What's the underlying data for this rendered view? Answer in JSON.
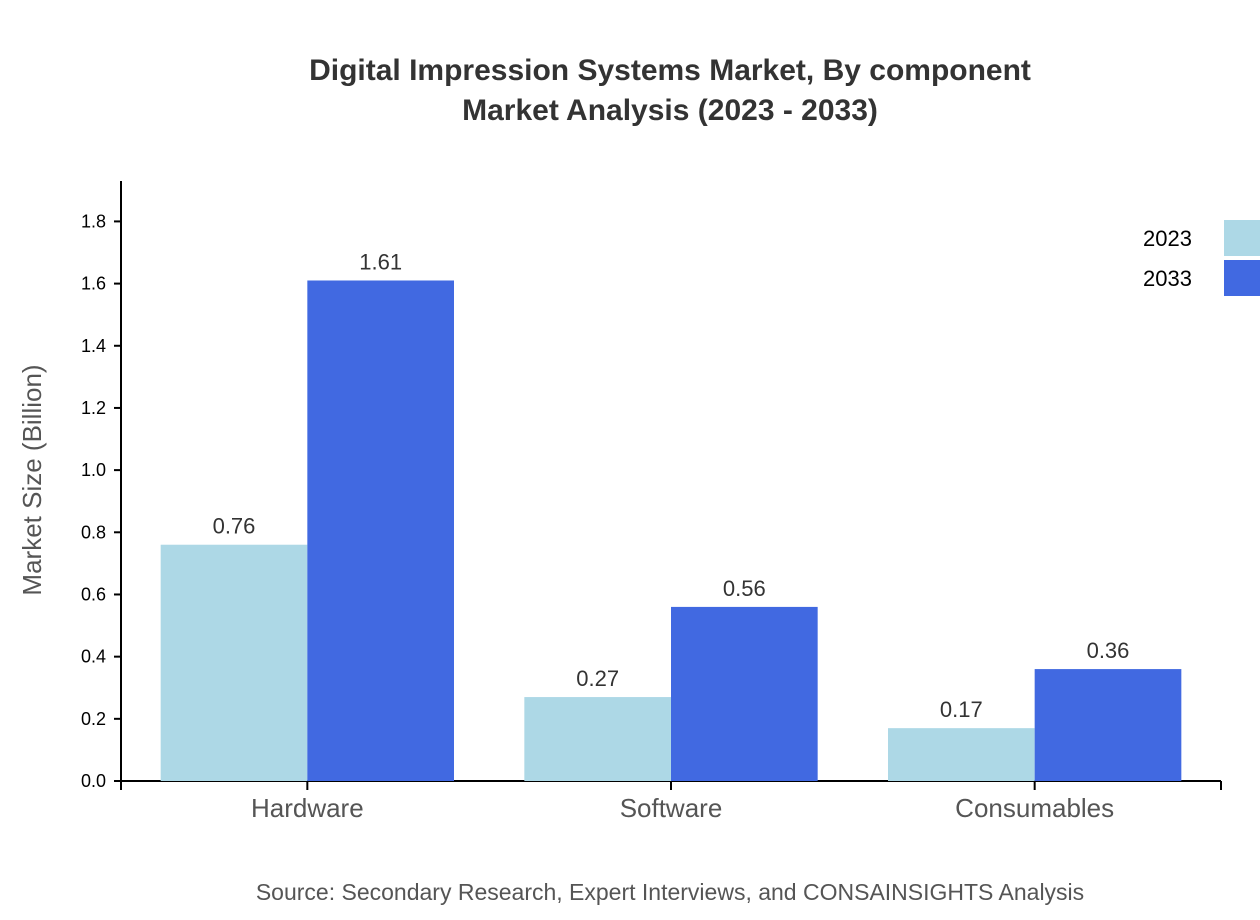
{
  "chart_data": {
    "type": "bar",
    "title": "Digital Impression Systems Market, By component",
    "subtitle": "Market Analysis (2023 - 2033)",
    "ylabel": "Market Size (Billion)",
    "xlabel": "",
    "categories": [
      "Hardware",
      "Software",
      "Consumables"
    ],
    "series": [
      {
        "name": "2023",
        "color": "#add8e6",
        "values": [
          0.76,
          0.27,
          0.17
        ]
      },
      {
        "name": "2033",
        "color": "#4169e1",
        "values": [
          1.61,
          0.56,
          0.36
        ]
      }
    ],
    "ylim": [
      0,
      1.93
    ],
    "yticks": [
      "0.0",
      "0.2",
      "0.4",
      "0.6",
      "0.8",
      "1.0",
      "1.2",
      "1.4",
      "1.6",
      "1.8"
    ],
    "grid": false,
    "legend": "top-right",
    "source": "Source: Secondary Research, Expert Interviews, and CONSAINSIGHTS Analysis"
  }
}
